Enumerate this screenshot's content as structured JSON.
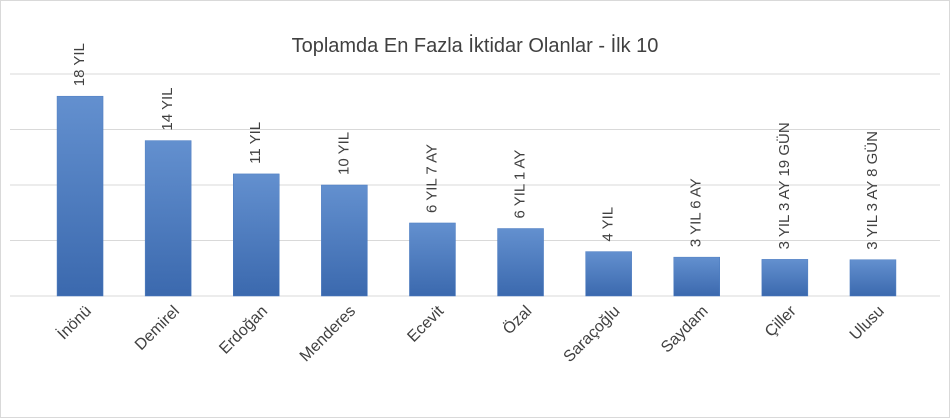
{
  "chart_data": {
    "type": "bar",
    "title": "Toplamda En Fazla İktidar Olanlar - İlk 10",
    "categories": [
      "İnönü",
      "Demirel",
      "Erdoğan",
      "Menderes",
      "Ecevit",
      "Özal",
      "Saraçoğlu",
      "Saydam",
      "Çiller",
      "Ulusu"
    ],
    "values": [
      18,
      14,
      11,
      10,
      6.58,
      6.08,
      4,
      3.5,
      3.3,
      3.27
    ],
    "value_labels": [
      "18 YIL",
      "14 YIL",
      "11 YIL",
      "10 YIL",
      "6 YIL 7 AY",
      "6 YIL 1 AY",
      "4 YIL",
      "3 YIL 6 AY",
      "3 YIL 3 AY 19 GÜN",
      "3 YIL 3 AY 8 GÜN"
    ],
    "color": "#4a7bc0",
    "ylim": [
      0,
      20
    ],
    "yticks": [
      0,
      5,
      10,
      15,
      20
    ],
    "grid": true
  }
}
